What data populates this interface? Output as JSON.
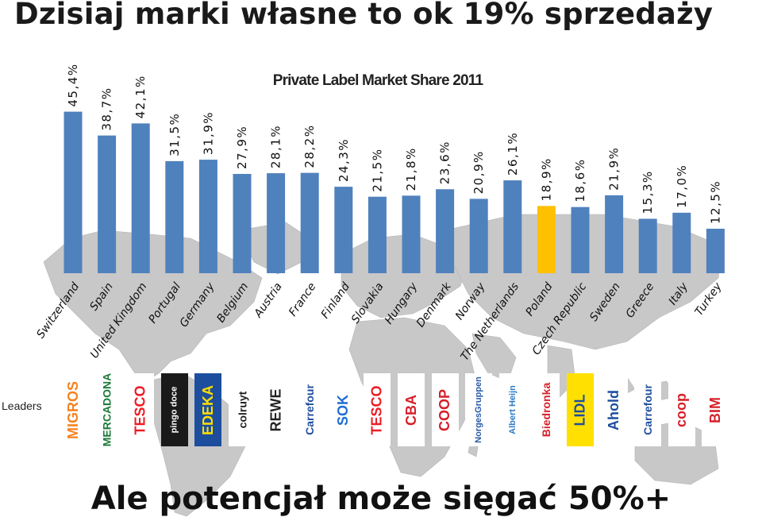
{
  "headline": "Dzisiaj marki własne to ok 19% sprzedaży",
  "footer": "Ale potencjał może sięgać 50%+",
  "leaders_label": "Leaders",
  "colors": {
    "bar": "#4f81bd",
    "highlight": "#ffc000",
    "map": "#c8c8c8"
  },
  "chart_data": {
    "type": "bar",
    "title": "Private Label Market Share 2011",
    "categories": [
      "Switzerland",
      "Spain",
      "United Kingdom",
      "Portugal",
      "Germany",
      "Belgium",
      "Austria",
      "France",
      "Finland",
      "Slovakia",
      "Hungary",
      "Denmark",
      "Norway",
      "The Netherlands",
      "Poland",
      "Czech Republic",
      "Sweden",
      "Greece",
      "Italy",
      "Turkey"
    ],
    "values": [
      45.4,
      38.7,
      42.1,
      31.5,
      31.9,
      27.9,
      28.1,
      28.2,
      24.3,
      21.5,
      21.8,
      23.6,
      20.9,
      26.1,
      18.9,
      18.6,
      21.9,
      15.3,
      17.0,
      12.5
    ],
    "labels": [
      "45,4%",
      "38,7%",
      "42,1%",
      "31,5%",
      "31,9%",
      "27,9%",
      "28,1%",
      "28,2%",
      "24,3%",
      "21,5%",
      "21,8%",
      "23,6%",
      "20,9%",
      "26,1%",
      "18,9%",
      "18,6%",
      "21,9%",
      "15,3%",
      "17,0%",
      "12,5%"
    ],
    "highlight": "Poland",
    "ylim": [
      0,
      50
    ]
  },
  "leaders": [
    {
      "name": "MIGROS",
      "color": "#f58220",
      "bg": "#ffffff"
    },
    {
      "name": "MERCADONA",
      "color": "#1e7b3a",
      "bg": "#ffffff"
    },
    {
      "name": "TESCO",
      "color": "#ee1c25",
      "bg": "#ffffff"
    },
    {
      "name": "pingo doce",
      "color": "#ffffff",
      "bg": "#1a1a1a"
    },
    {
      "name": "EDEKA",
      "color": "#ffe000",
      "bg": "#1d4e9e"
    },
    {
      "name": "colruyt",
      "color": "#222222",
      "bg": "#ffffff"
    },
    {
      "name": "REWE",
      "color": "#222222",
      "bg": "#ffffff"
    },
    {
      "name": "Carrefour",
      "color": "#1f4e9e",
      "bg": "#ffffff"
    },
    {
      "name": "SOK",
      "color": "#1f6ed4",
      "bg": "#ffffff"
    },
    {
      "name": "TESCO",
      "color": "#ee1c25",
      "bg": "#ffffff"
    },
    {
      "name": "CBA",
      "color": "#d6202a",
      "bg": "#ffffff"
    },
    {
      "name": "COOP",
      "color": "#d6202a",
      "bg": "#ffffff"
    },
    {
      "name": "NorgesGruppen",
      "color": "#2a5aa8",
      "bg": "#ffffff"
    },
    {
      "name": "Albert Heijn",
      "color": "#2e7bc4",
      "bg": "#ffffff"
    },
    {
      "name": "Biedronka",
      "color": "#d6202a",
      "bg": "#ffffff"
    },
    {
      "name": "LIDL",
      "color": "#1d4e9e",
      "bg": "#ffe000"
    },
    {
      "name": "Ahold",
      "color": "#1d4e9e",
      "bg": "#ffffff"
    },
    {
      "name": "Carrefour",
      "color": "#1f4e9e",
      "bg": "#ffffff"
    },
    {
      "name": "coop",
      "color": "#d6202a",
      "bg": "#ffffff"
    },
    {
      "name": "BIM",
      "color": "#d6202a",
      "bg": "#ffffff"
    }
  ]
}
